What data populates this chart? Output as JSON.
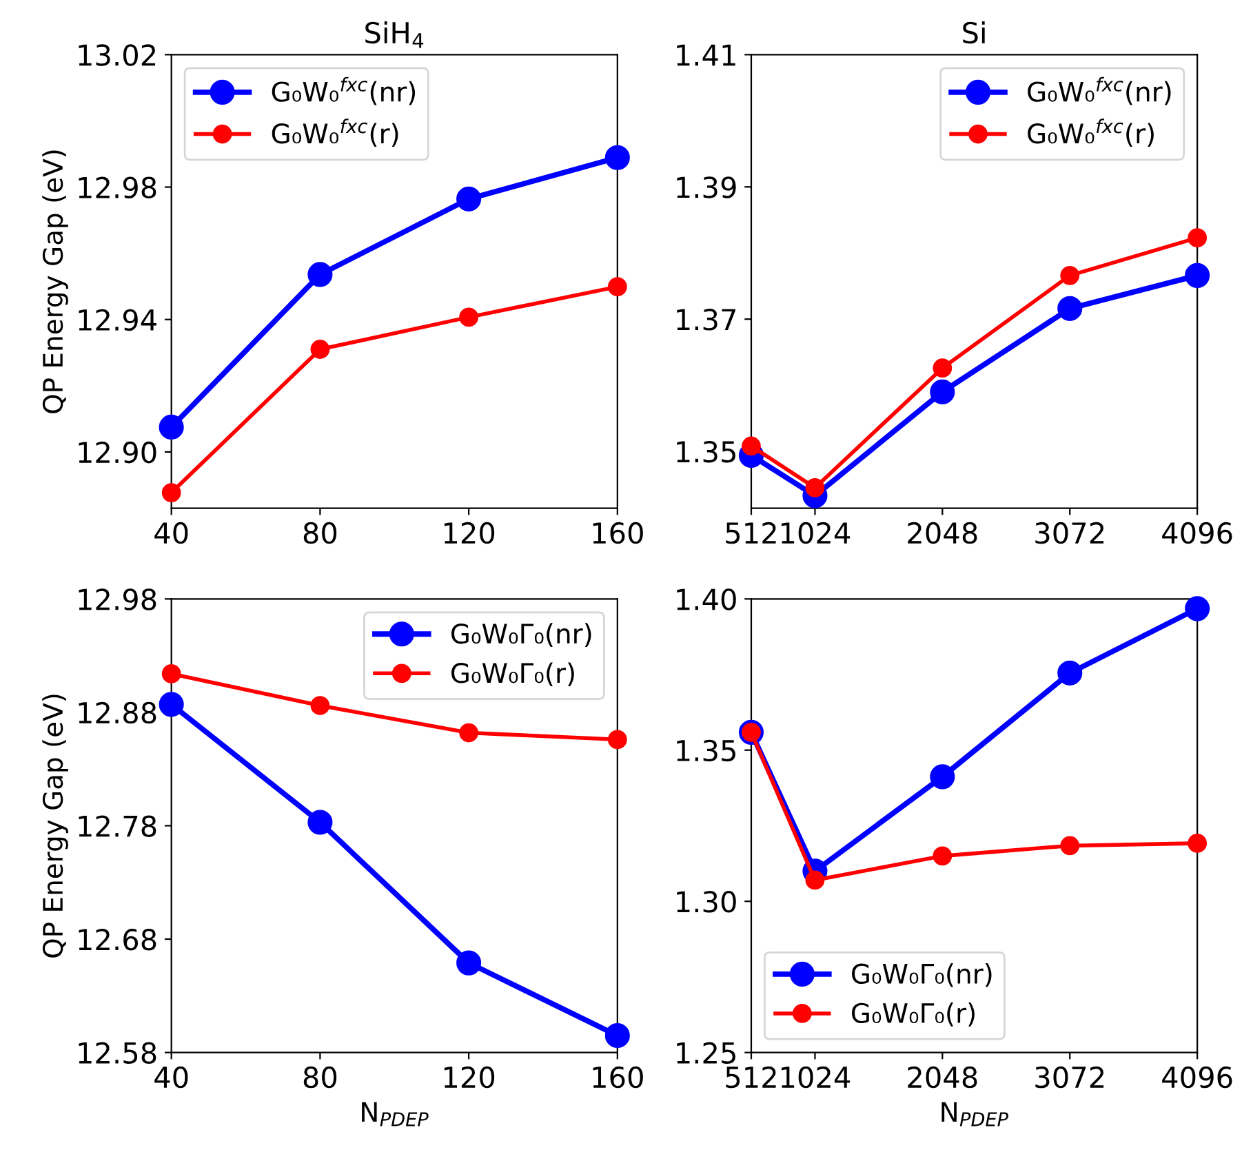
{
  "chart_data": [
    {
      "type": "line",
      "title": "SiH$_{4}$",
      "ylabel": "QP Energy Gap (eV)",
      "x": [
        40,
        80,
        120,
        160
      ],
      "xlim": [
        40,
        160
      ],
      "xticks": [
        40,
        80,
        120,
        160
      ],
      "ylim": [
        12.883,
        13.02
      ],
      "yticks": [
        {
          "value": 12.9,
          "label": "12.90"
        },
        {
          "value": 12.94,
          "label": "12.94"
        },
        12.98,
        13.02
      ],
      "legend": "top left",
      "marker": "circle",
      "line_style": "solid",
      "grid": false,
      "series": [
        {
          "name": "G₀W₀$^{fxc}$(nr)",
          "color": "#0000ff",
          "values": [
            12.9075,
            12.9536,
            12.9764,
            12.9889
          ]
        },
        {
          "name": "G₀W₀$^{fxc}$(r)",
          "color": "#ff0000",
          "values": [
            12.8877,
            12.931,
            12.9407,
            12.9499
          ]
        }
      ]
    },
    {
      "type": "line",
      "title": "Si",
      "x": [
        512,
        1024,
        2048,
        3072,
        4096
      ],
      "xlim": [
        512,
        4096
      ],
      "xticks": [
        512,
        1024,
        2048,
        3072,
        4096
      ],
      "ylim": [
        1.3414,
        1.41
      ],
      "yticks": [
        1.35,
        1.37,
        1.39,
        1.41
      ],
      "legend": "top right",
      "marker": "circle",
      "line_style": "solid",
      "grid": false,
      "series": [
        {
          "name": "G₀W₀$^{fxc}$(nr)",
          "color": "#0000ff",
          "values": [
            1.3494,
            1.3433,
            1.359,
            1.3716,
            1.3766
          ]
        },
        {
          "name": "G₀W₀$^{fxc}$(r)",
          "color": "#ff0000",
          "values": [
            1.3508,
            1.3445,
            1.3626,
            1.3766,
            1.3823
          ]
        }
      ]
    },
    {
      "type": "line",
      "xlabel": "N$_{PDEP}$",
      "ylabel": "QP Energy Gap (eV)",
      "x": [
        40,
        80,
        120,
        160
      ],
      "xlim": [
        40,
        160
      ],
      "xticks": [
        40,
        80,
        120,
        160
      ],
      "ylim": [
        12.58,
        12.98
      ],
      "yticks": [
        12.58,
        12.68,
        12.78,
        12.88,
        12.98
      ],
      "legend": "top right",
      "marker": "circle",
      "line_style": "solid",
      "grid": false,
      "series": [
        {
          "name": "G₀W₀Γ₀(nr)",
          "color": "#0000ff",
          "values": [
            12.887,
            12.783,
            12.659,
            12.595
          ]
        },
        {
          "name": "G₀W₀Γ₀(r)",
          "color": "#ff0000",
          "values": [
            12.914,
            12.886,
            12.862,
            12.856
          ]
        }
      ]
    },
    {
      "type": "line",
      "xlabel": "N$_{PDEP}$",
      "x": [
        512,
        1024,
        2048,
        3072,
        4096
      ],
      "xlim": [
        512,
        4096
      ],
      "xticks": [
        512,
        1024,
        2048,
        3072,
        4096
      ],
      "ylim": [
        1.25,
        1.4
      ],
      "yticks": [
        1.25,
        {
          "value": 1.3,
          "label": "1.30"
        },
        1.35,
        {
          "value": 1.4,
          "label": "1.40"
        }
      ],
      "legend": "bottom left",
      "marker": "circle",
      "line_style": "solid",
      "grid": false,
      "series": [
        {
          "name": "G₀W₀Γ₀(nr)",
          "color": "#0000ff",
          "values": [
            1.3559,
            1.31,
            1.3412,
            1.3755,
            1.3968
          ]
        },
        {
          "name": "G₀W₀Γ₀(r)",
          "color": "#ff0000",
          "values": [
            1.3559,
            1.307,
            1.315,
            1.3184,
            1.3192
          ]
        }
      ]
    }
  ]
}
